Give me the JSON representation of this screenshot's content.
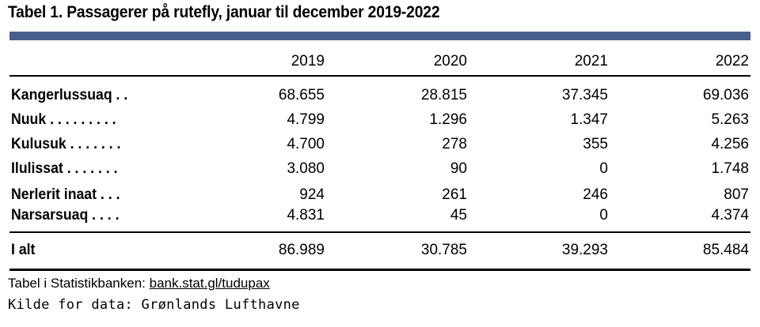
{
  "title": "Tabel 1. Passagerer på rutefly, januar til december 2019-2022",
  "table": {
    "columns": [
      "2019",
      "2020",
      "2021",
      "2022"
    ],
    "rows": [
      {
        "label": "Kangerlussuaq . .",
        "values": [
          "68.655",
          "28.815",
          "37.345",
          "69.036"
        ]
      },
      {
        "label": "Nuuk . . . . . . . . .",
        "values": [
          "4.799",
          "1.296",
          "1.347",
          "5.263"
        ]
      },
      {
        "label": "Kulusuk . . . . . . .",
        "values": [
          "4.700",
          "278",
          "355",
          "4.256"
        ]
      },
      {
        "label": "Ilulissat . . . . . . .",
        "values": [
          "3.080",
          "90",
          "0",
          "1.748"
        ]
      },
      {
        "label": "Nerlerit inaat . . .",
        "values": [
          "924",
          "261",
          "246",
          "807"
        ]
      },
      {
        "label": "Narsarsuaq . . . .",
        "values": [
          "4.831",
          "45",
          "0",
          "4.374"
        ]
      }
    ],
    "total": {
      "label": "I alt",
      "values": [
        "86.989",
        "30.785",
        "39.293",
        "85.484"
      ]
    }
  },
  "footer": {
    "source_prefix": "Tabel i Statistikbanken: ",
    "source_link": "bank.stat.gl/tudupax",
    "credit": "Kilde for data: Grønlands Lufthavne"
  },
  "colors": {
    "top_bar": "#4a5f8e"
  }
}
